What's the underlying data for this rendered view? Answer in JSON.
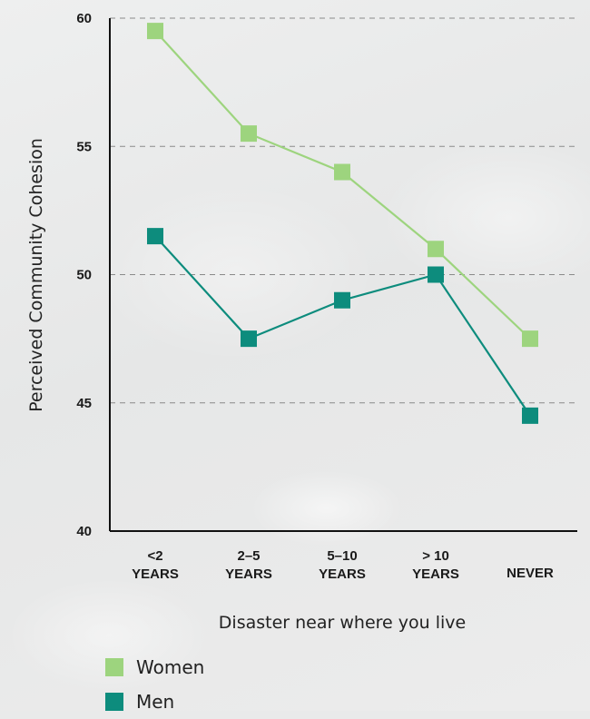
{
  "chart_data": {
    "type": "line",
    "categories": [
      [
        "<2",
        "YEARS"
      ],
      [
        "2–5",
        "YEARS"
      ],
      [
        "5–10",
        "YEARS"
      ],
      [
        "> 10",
        "YEARS"
      ],
      [
        "NEVER"
      ]
    ],
    "series": [
      {
        "name": "Women",
        "color": "#9dd47e",
        "values": [
          59.5,
          55.5,
          54,
          51,
          47.5
        ]
      },
      {
        "name": "Men",
        "color": "#0d8c7d",
        "values": [
          51.5,
          47.5,
          49,
          50,
          44.5
        ]
      }
    ],
    "ylabel": "Perceived Community Cohesion",
    "xlabel": "Disaster near where you live",
    "ylim": [
      40,
      60
    ],
    "yticks": [
      40,
      45,
      50,
      55,
      60
    ],
    "grid": "horizontal dashed",
    "legend_position": "bottom-left"
  }
}
